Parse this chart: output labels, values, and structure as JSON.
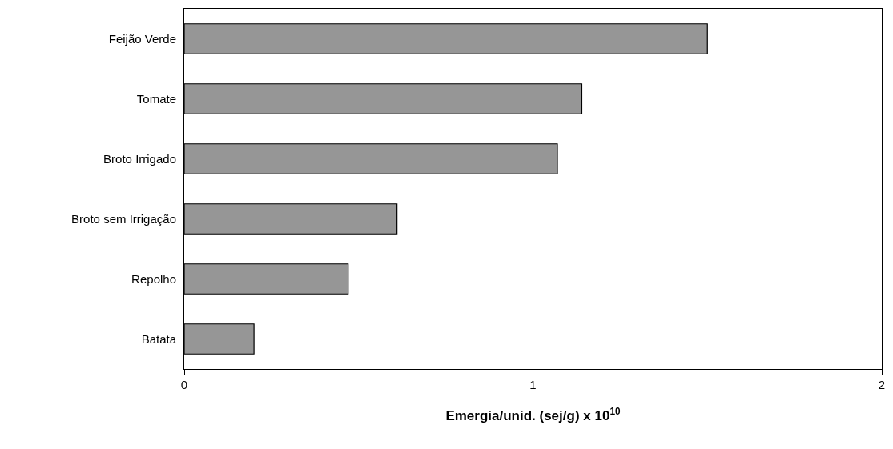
{
  "chart_data": {
    "type": "bar",
    "orientation": "horizontal",
    "xlabel": "Emergia/unid. (sej/g) x 10$^{10}$",
    "categories": [
      "Feijão Verde",
      "Tomate",
      "Broto Irrigado",
      "Broto sem Irrigação",
      "Repolho",
      "Batata"
    ],
    "values": [
      1.5,
      1.14,
      1.07,
      0.61,
      0.47,
      0.2
    ],
    "color": "#969696",
    "xlim": [
      0,
      2
    ],
    "xticks": [
      0,
      1,
      2
    ],
    "grid": false,
    "legend": false
  }
}
